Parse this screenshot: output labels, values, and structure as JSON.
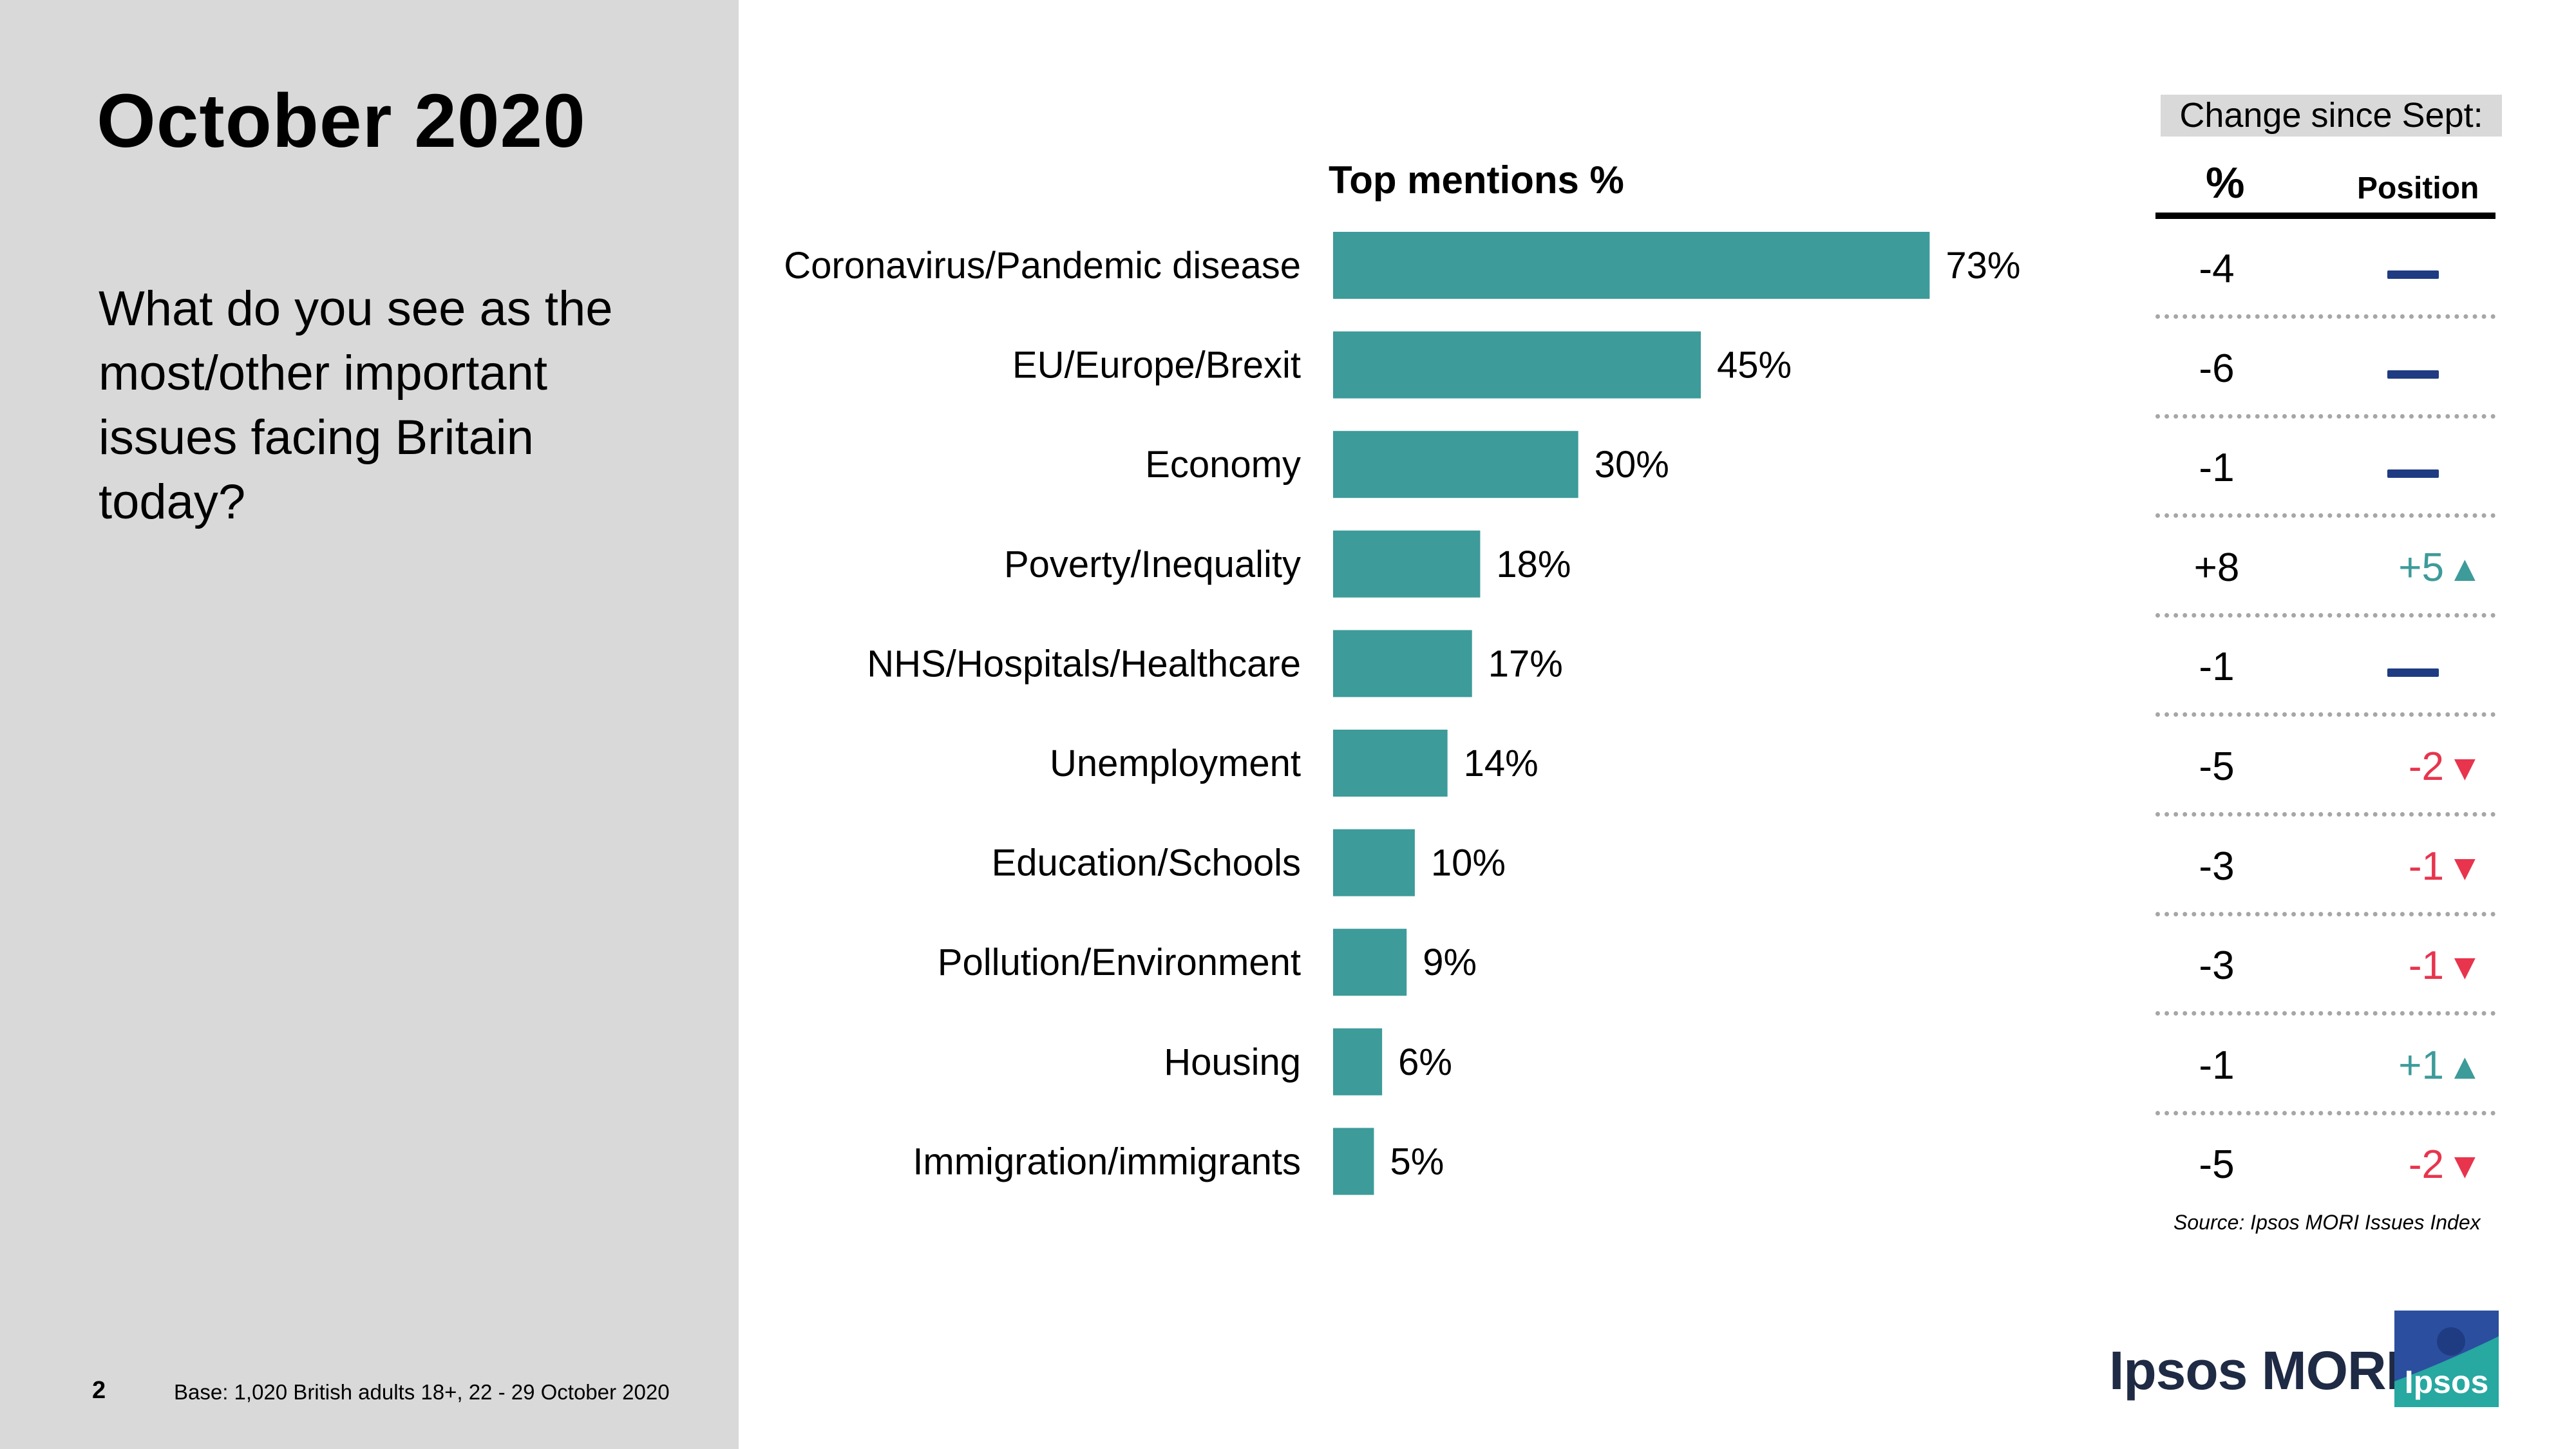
{
  "title": "October 2020",
  "question": "What do you see as the most/other important issues facing Britain today?",
  "footer": {
    "page_number": "2",
    "base": "Base: 1,020 British adults 18+, 22 - 29 October 2020"
  },
  "source": "Source: Ipsos MORI Issues Index",
  "brand": {
    "name": "Ipsos MORI",
    "logo_text": "Ipsos"
  },
  "change_table": {
    "header": "Change since Sept:",
    "pct_label": "%",
    "position_label": "Position",
    "rows": [
      {
        "pct": "-4",
        "position": "",
        "direction": "none"
      },
      {
        "pct": "-6",
        "position": "",
        "direction": "none"
      },
      {
        "pct": "-1",
        "position": "",
        "direction": "none"
      },
      {
        "pct": "+8",
        "position": "+5",
        "direction": "up"
      },
      {
        "pct": "-1",
        "position": "",
        "direction": "none"
      },
      {
        "pct": "-5",
        "position": "-2",
        "direction": "down"
      },
      {
        "pct": "-3",
        "position": "-1",
        "direction": "down"
      },
      {
        "pct": "-3",
        "position": "-1",
        "direction": "down"
      },
      {
        "pct": "-1",
        "position": "+1",
        "direction": "up"
      },
      {
        "pct": "-5",
        "position": "-2",
        "direction": "down"
      }
    ]
  },
  "colors": {
    "bar": "#3d9b9a",
    "up": "#3d9b9a",
    "down": "#e8344d",
    "no_change": "#1f3b82",
    "panel": "#d9d9d9"
  },
  "chart_data": {
    "type": "bar",
    "orientation": "horizontal",
    "title": "Top mentions %",
    "categories": [
      "Coronavirus/Pandemic disease",
      "EU/Europe/Brexit",
      "Economy",
      "Poverty/Inequality",
      "NHS/Hospitals/Healthcare",
      "Unemployment",
      "Education/Schools",
      "Pollution/Environment",
      "Housing",
      "Immigration/immigrants"
    ],
    "values": [
      73,
      45,
      30,
      18,
      17,
      14,
      10,
      9,
      6,
      5
    ],
    "value_suffix": "%",
    "xlim": [
      0,
      100
    ],
    "grid": false,
    "legend": "none"
  }
}
